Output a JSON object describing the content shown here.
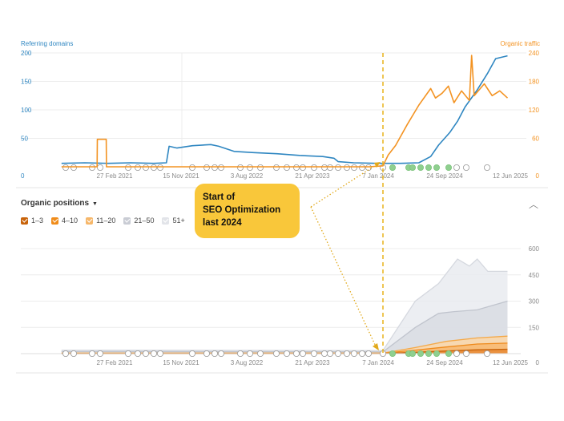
{
  "top_chart": {
    "left_axis_title": "Referring domains",
    "right_axis_title": "Organic traffic"
  },
  "positions_section": {
    "title": "Organic positions",
    "legend": [
      {
        "label": "1–3",
        "color": "#c8630a",
        "checked": true
      },
      {
        "label": "4–10",
        "color": "#f08c1a",
        "checked": true
      },
      {
        "label": "11–20",
        "color": "#f6b76a",
        "checked": true
      },
      {
        "label": "21–50",
        "color": "#c9ccd4",
        "checked": true
      },
      {
        "label": "51+",
        "color": "#e2e4e9",
        "checked": true
      }
    ]
  },
  "annotation": {
    "lines": [
      "Start of",
      "SEO Optimization",
      "last 2024"
    ],
    "color": "#f9c73a"
  },
  "colors": {
    "referring_domains": "#2e86c1",
    "organic_traffic": "#f39322",
    "marker_line": "#e8b31a",
    "event_marker_green": "#8fcf8f"
  },
  "chart_data": [
    {
      "type": "line",
      "x_tick_labels": [
        "27 Feb 2021",
        "15 Nov 2021",
        "3 Aug 2022",
        "21 Apr 2023",
        "7 Jan 2024",
        "24 Sep 2024",
        "12 Jun 2025"
      ],
      "ylabel": "Referring domains",
      "ylabel_right": "Organic traffic",
      "ylim": [
        0,
        200
      ],
      "y2lim": [
        0,
        240
      ],
      "y_ticks": [
        0,
        50,
        100,
        150,
        200
      ],
      "y2_ticks": [
        0,
        60,
        120,
        180,
        240
      ],
      "grid": true,
      "vertical_marker_date": "2024-01-25",
      "series": [
        {
          "name": "Referring domains",
          "axis": "left",
          "points": [
            [
              "2020-08-01",
              6
            ],
            [
              "2020-11-01",
              7
            ],
            [
              "2021-02-01",
              6
            ],
            [
              "2021-05-01",
              7
            ],
            [
              "2021-08-01",
              6
            ],
            [
              "2021-09-20",
              7
            ],
            [
              "2021-10-01",
              36
            ],
            [
              "2021-11-01",
              33
            ],
            [
              "2022-01-01",
              37
            ],
            [
              "2022-03-15",
              39
            ],
            [
              "2022-04-15",
              36
            ],
            [
              "2022-06-15",
              27
            ],
            [
              "2022-09-01",
              25
            ],
            [
              "2022-12-01",
              23
            ],
            [
              "2023-03-01",
              20
            ],
            [
              "2023-06-01",
              18
            ],
            [
              "2023-07-15",
              15
            ],
            [
              "2023-08-01",
              9
            ],
            [
              "2023-10-01",
              7
            ],
            [
              "2024-01-01",
              6
            ],
            [
              "2024-04-01",
              6
            ],
            [
              "2024-06-15",
              7
            ],
            [
              "2024-08-01",
              18
            ],
            [
              "2024-09-01",
              38
            ],
            [
              "2024-10-15",
              60
            ],
            [
              "2024-11-15",
              80
            ],
            [
              "2024-12-15",
              105
            ],
            [
              "2025-02-01",
              135
            ],
            [
              "2025-03-15",
              165
            ],
            [
              "2025-04-15",
              190
            ],
            [
              "2025-06-01",
              195
            ]
          ]
        },
        {
          "name": "Organic traffic",
          "axis": "right",
          "points": [
            [
              "2020-08-01",
              0
            ],
            [
              "2020-12-20",
              0
            ],
            [
              "2020-12-21",
              58
            ],
            [
              "2021-01-25",
              58
            ],
            [
              "2021-01-26",
              0
            ],
            [
              "2023-12-01",
              0
            ],
            [
              "2024-01-25",
              2
            ],
            [
              "2024-02-15",
              25
            ],
            [
              "2024-03-15",
              45
            ],
            [
              "2024-05-01",
              90
            ],
            [
              "2024-06-15",
              130
            ],
            [
              "2024-08-01",
              165
            ],
            [
              "2024-08-20",
              145
            ],
            [
              "2024-09-15",
              155
            ],
            [
              "2024-10-10",
              170
            ],
            [
              "2024-11-01",
              135
            ],
            [
              "2024-12-01",
              160
            ],
            [
              "2025-01-01",
              140
            ],
            [
              "2025-01-10",
              235
            ],
            [
              "2025-01-20",
              150
            ],
            [
              "2025-03-01",
              175
            ],
            [
              "2025-04-01",
              150
            ],
            [
              "2025-05-01",
              160
            ],
            [
              "2025-06-01",
              145
            ]
          ]
        }
      ]
    },
    {
      "type": "area",
      "x_tick_labels": [
        "27 Feb 2021",
        "15 Nov 2021",
        "3 Aug 2022",
        "21 Apr 2023",
        "7 Jan 2024",
        "24 Sep 2024",
        "12 Jun 2025"
      ],
      "ylim": [
        0,
        600
      ],
      "y2_ticks": [
        0,
        150,
        300,
        450,
        600
      ],
      "grid": true,
      "stacked": true,
      "series": [
        {
          "name": "1–3",
          "points": [
            [
              "2020-08-01",
              0
            ],
            [
              "2024-01-25",
              0
            ],
            [
              "2024-06-01",
              8
            ],
            [
              "2024-10-01",
              15
            ],
            [
              "2025-02-01",
              22
            ],
            [
              "2025-06-01",
              25
            ]
          ]
        },
        {
          "name": "4–10",
          "points": [
            [
              "2020-08-01",
              2
            ],
            [
              "2024-01-25",
              2
            ],
            [
              "2024-06-01",
              20
            ],
            [
              "2024-10-01",
              38
            ],
            [
              "2025-02-01",
              55
            ],
            [
              "2025-06-01",
              60
            ]
          ]
        },
        {
          "name": "11–20",
          "points": [
            [
              "2020-08-01",
              3
            ],
            [
              "2024-01-25",
              3
            ],
            [
              "2024-06-01",
              35
            ],
            [
              "2024-10-01",
              70
            ],
            [
              "2025-02-01",
              90
            ],
            [
              "2025-06-01",
              100
            ]
          ]
        },
        {
          "name": "21–50",
          "points": [
            [
              "2020-08-01",
              12
            ],
            [
              "2024-01-25",
              10
            ],
            [
              "2024-06-01",
              150
            ],
            [
              "2024-09-01",
              230
            ],
            [
              "2024-11-01",
              240
            ],
            [
              "2025-02-01",
              250
            ],
            [
              "2025-06-01",
              300
            ]
          ]
        },
        {
          "name": "51+",
          "points": [
            [
              "2020-08-01",
              20
            ],
            [
              "2024-01-25",
              18
            ],
            [
              "2024-06-01",
              300
            ],
            [
              "2024-09-01",
              400
            ],
            [
              "2024-11-15",
              540
            ],
            [
              "2025-01-01",
              500
            ],
            [
              "2025-02-01",
              540
            ],
            [
              "2025-03-15",
              470
            ],
            [
              "2025-06-01",
              470
            ]
          ]
        }
      ]
    }
  ]
}
